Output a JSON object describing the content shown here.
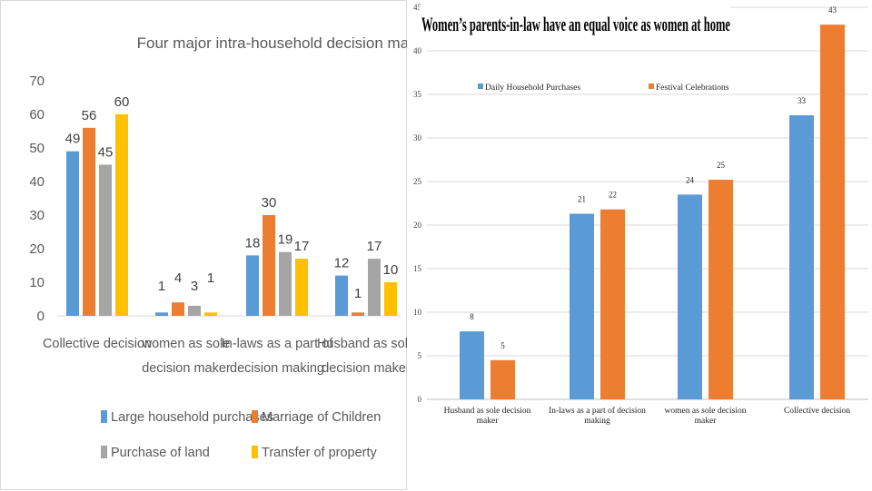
{
  "chart_data": [
    {
      "type": "bar",
      "title": "Four major intra-household decision making",
      "categories": [
        [
          "Collective decision"
        ],
        [
          "women as sole",
          "decision maker"
        ],
        [
          "In-laws as a part of",
          "decision making"
        ],
        [
          "Husband as sole",
          "decision maker"
        ]
      ],
      "series": [
        {
          "name": "Large household purchases",
          "color": "#5b9bd5",
          "values": [
            49,
            1,
            18,
            12
          ]
        },
        {
          "name": "Marriage of Children",
          "color": "#ed7d31",
          "values": [
            56,
            4,
            30,
            1
          ]
        },
        {
          "name": "Purchase of land",
          "color": "#a5a5a5",
          "values": [
            45,
            3,
            19,
            17
          ]
        },
        {
          "name": "Transfer of property",
          "color": "#ffc000",
          "values": [
            60,
            1,
            17,
            10
          ]
        }
      ],
      "yticks": [
        0,
        10,
        20,
        30,
        40,
        50,
        60,
        70
      ],
      "ylim": [
        0,
        70
      ],
      "xlabel": "",
      "ylabel": "",
      "legend_position": "bottom",
      "grid": false
    },
    {
      "type": "bar",
      "title": "Women’s parents-in-law have an equal voice as women at home",
      "categories": [
        [
          "Husband as sole decision",
          "maker"
        ],
        [
          "In-laws as a part of decision",
          "making"
        ],
        [
          "women as  sole decision",
          "maker"
        ],
        [
          "Collective decision"
        ]
      ],
      "series": [
        {
          "name": "Daily Household Purchases",
          "color": "#5b9bd5",
          "values": [
            8,
            21,
            24,
            33
          ]
        },
        {
          "name": "Festival Celebrations",
          "color": "#ed7d31",
          "values": [
            5,
            22,
            25,
            43
          ]
        }
      ],
      "bar_values": [
        [
          7.8,
          21.3,
          23.5,
          32.6
        ],
        [
          4.5,
          21.8,
          25.2,
          43
        ]
      ],
      "yticks": [
        0,
        5,
        10,
        15,
        20,
        25,
        30,
        35,
        40,
        45
      ],
      "ylim": [
        0,
        45
      ],
      "xlabel": "",
      "ylabel": "",
      "legend_position": "top",
      "grid": true
    }
  ]
}
